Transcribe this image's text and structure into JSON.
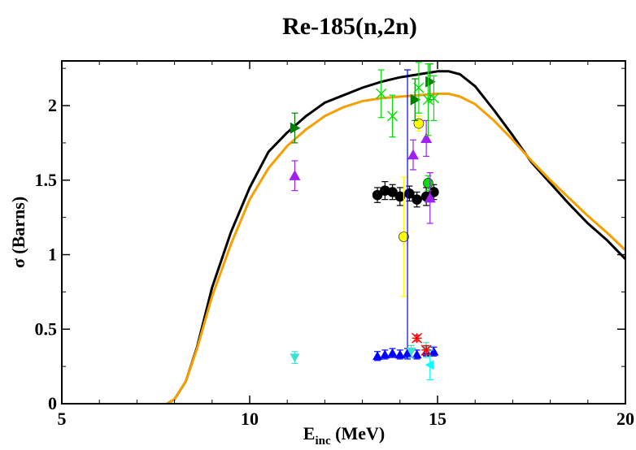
{
  "chart_data": {
    "type": "scatter",
    "title": "Re-185(n,2n)",
    "xlabel": "E",
    "xlabel_sub": "inc",
    "xlabel_unit": " (MeV)",
    "ylabel": "σ (Barns)",
    "xlim": [
      5,
      20
    ],
    "ylim": [
      0,
      2.3
    ],
    "x_ticks": [
      5,
      10,
      15,
      20
    ],
    "x_tick_labels": [
      "5",
      "10",
      "15",
      "20"
    ],
    "y_ticks": [
      0,
      0.5,
      1,
      1.5,
      2
    ],
    "y_tick_labels": [
      "0",
      "0.5",
      "1",
      "1.5",
      "2"
    ],
    "grid": false,
    "curves": [
      {
        "color": "#000000",
        "x": [
          7.8,
          8.0,
          8.3,
          8.6,
          9.0,
          9.5,
          10.0,
          10.5,
          11.0,
          11.5,
          12.0,
          12.5,
          13.0,
          13.5,
          14.0,
          14.5,
          15.0,
          15.3,
          15.6,
          16.0,
          16.5,
          17.0,
          17.5,
          18.0,
          18.5,
          19.0,
          19.5,
          20.0
        ],
        "y": [
          0.0,
          0.03,
          0.15,
          0.38,
          0.78,
          1.15,
          1.45,
          1.69,
          1.82,
          1.93,
          2.02,
          2.07,
          2.12,
          2.16,
          2.19,
          2.21,
          2.23,
          2.23,
          2.21,
          2.13,
          1.97,
          1.8,
          1.62,
          1.48,
          1.34,
          1.21,
          1.1,
          0.97
        ]
      },
      {
        "color": "#f5a000",
        "x": [
          7.8,
          8.0,
          8.3,
          8.6,
          9.0,
          9.5,
          10.0,
          10.5,
          11.0,
          11.5,
          12.0,
          12.5,
          13.0,
          13.5,
          14.0,
          14.5,
          15.0,
          15.3,
          15.6,
          16.0,
          16.5,
          17.0,
          17.5,
          18.0,
          18.5,
          19.0,
          19.5,
          20.0
        ],
        "y": [
          0.0,
          0.03,
          0.15,
          0.37,
          0.72,
          1.07,
          1.37,
          1.58,
          1.73,
          1.84,
          1.93,
          1.99,
          2.03,
          2.05,
          2.06,
          2.07,
          2.08,
          2.08,
          2.06,
          2.01,
          1.9,
          1.77,
          1.63,
          1.5,
          1.38,
          1.26,
          1.15,
          1.03
        ]
      }
    ],
    "series": [
      {
        "color": "#000000",
        "marker": "circle",
        "size": 6,
        "points": [
          [
            13.4,
            1.4,
            0.05
          ],
          [
            13.6,
            1.43,
            0.06
          ],
          [
            13.8,
            1.42,
            0.05
          ],
          [
            14.0,
            1.39,
            0.06
          ],
          [
            14.25,
            1.41,
            0.05
          ],
          [
            14.45,
            1.37,
            0.05
          ],
          [
            14.7,
            1.39,
            0.06
          ],
          [
            14.9,
            1.42,
            0.05
          ]
        ]
      },
      {
        "color": "#ffff00",
        "marker": "circle",
        "size": 6,
        "points": [
          [
            14.1,
            1.12,
            0.4
          ],
          [
            14.5,
            1.88,
            0.05
          ]
        ]
      },
      {
        "color": "#00e000",
        "marker": "circle",
        "size": 6,
        "points": [
          [
            14.75,
            1.48,
            0.05
          ]
        ]
      },
      {
        "color": "#a020f0",
        "marker": "triangle-up",
        "size": 7,
        "points": [
          [
            11.2,
            1.53,
            0.1
          ],
          [
            14.35,
            1.67,
            0.1
          ],
          [
            14.7,
            1.78,
            0.12
          ],
          [
            14.8,
            1.38,
            0.17
          ]
        ]
      },
      {
        "color": "#008000",
        "marker": "triangle-right",
        "size": 7,
        "points": [
          [
            11.2,
            1.85,
            0.1
          ],
          [
            14.4,
            2.04,
            0.14
          ],
          [
            14.8,
            2.16,
            0.12
          ]
        ]
      },
      {
        "color": "#00e000",
        "marker": "cross",
        "size": 6,
        "points": [
          [
            13.5,
            2.08,
            0.16
          ],
          [
            13.8,
            1.93,
            0.14
          ],
          [
            14.5,
            2.12,
            0.17
          ],
          [
            14.75,
            2.04,
            0.24
          ],
          [
            14.9,
            2.05,
            0.15
          ]
        ]
      },
      {
        "color": "#0000ff",
        "marker": "triangle-up",
        "size": 6,
        "points": [
          [
            13.4,
            0.32,
            0.03
          ],
          [
            13.6,
            0.33,
            0.03
          ],
          [
            13.8,
            0.34,
            0.03
          ],
          [
            14.0,
            0.33,
            0.03
          ],
          [
            14.2,
            0.34,
            0.03
          ],
          [
            14.45,
            0.33,
            0.03
          ],
          [
            14.7,
            0.35,
            0.03
          ],
          [
            14.9,
            0.35,
            0.03
          ]
        ]
      },
      {
        "color": "#0000ff",
        "marker": "errbar-only",
        "size": 0,
        "points": [
          [
            14.2,
            1.27,
            0.97
          ]
        ]
      },
      {
        "color": "#40e0d0",
        "marker": "triangle-down",
        "size": 6,
        "points": [
          [
            11.2,
            0.31,
            0.04
          ],
          [
            14.3,
            0.35,
            0.04
          ],
          [
            14.7,
            0.36,
            0.05
          ]
        ]
      },
      {
        "color": "#00ffff",
        "marker": "triangle-left",
        "size": 6,
        "points": [
          [
            14.8,
            0.26,
            0.1
          ]
        ]
      },
      {
        "color": "#ff0000",
        "marker": "asterisk",
        "size": 6,
        "points": [
          [
            14.45,
            0.44,
            0.02
          ],
          [
            14.7,
            0.36,
            0.03
          ]
        ]
      }
    ]
  }
}
